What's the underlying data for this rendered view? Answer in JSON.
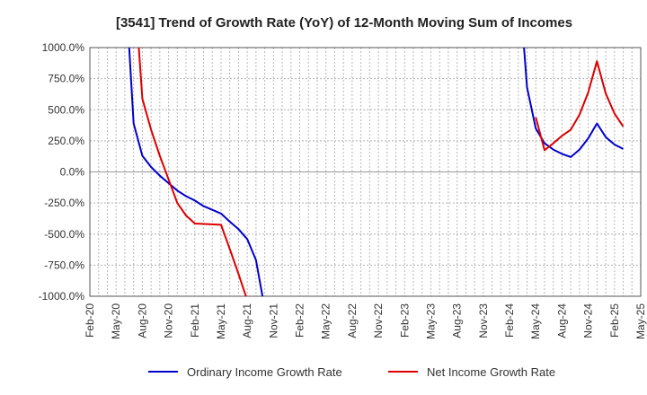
{
  "chart_data": {
    "type": "line",
    "title": "[3541]  Trend of Growth Rate (YoY) of 12-Month Moving Sum of Incomes",
    "xlabel": "",
    "ylabel": "",
    "ylim": [
      -1000,
      1000
    ],
    "y_ticks": [
      1000,
      750,
      500,
      250,
      0,
      -250,
      -500,
      -750,
      -1000
    ],
    "y_tick_labels": [
      "1000.0%",
      "750.0%",
      "500.0%",
      "250.0%",
      "0.0%",
      "-250.0%",
      "-500.0%",
      "-750.0%",
      "-1000.0%"
    ],
    "x_ticks": [
      "2020-02",
      "2020-05",
      "2020-08",
      "2020-11",
      "2021-02",
      "2021-05",
      "2021-08",
      "2021-11",
      "2022-02",
      "2022-05",
      "2022-08",
      "2022-11",
      "2023-02",
      "2023-05",
      "2023-08",
      "2023-11",
      "2024-02",
      "2024-05",
      "2024-08",
      "2024-11",
      "2025-02",
      "2025-05"
    ],
    "x_tick_labels": [
      "Feb-20",
      "May-20",
      "Aug-20",
      "Nov-20",
      "Feb-21",
      "May-21",
      "Aug-21",
      "Nov-21",
      "Feb-22",
      "May-22",
      "Aug-22",
      "Nov-22",
      "Feb-23",
      "May-23",
      "Aug-23",
      "Nov-23",
      "Feb-24",
      "May-24",
      "Aug-24",
      "Nov-24",
      "Feb-25",
      "May-25"
    ],
    "grid": true,
    "legend_position": "bottom",
    "series": [
      {
        "name": "Ordinary Income Growth Rate",
        "color": "#0000cc",
        "points": [
          {
            "x": "2020-06",
            "y": 1600
          },
          {
            "x": "2020-07",
            "y": 390
          },
          {
            "x": "2020-08",
            "y": 130
          },
          {
            "x": "2020-09",
            "y": 40
          },
          {
            "x": "2020-10",
            "y": -30
          },
          {
            "x": "2020-11",
            "y": -90
          },
          {
            "x": "2020-12",
            "y": -150
          },
          {
            "x": "2021-01",
            "y": -195
          },
          {
            "x": "2021-02",
            "y": -230
          },
          {
            "x": "2021-03",
            "y": -275
          },
          {
            "x": "2021-04",
            "y": -305
          },
          {
            "x": "2021-05",
            "y": -335
          },
          {
            "x": "2021-06",
            "y": -400
          },
          {
            "x": "2021-07",
            "y": -460
          },
          {
            "x": "2021-08",
            "y": -540
          },
          {
            "x": "2021-09",
            "y": -710
          },
          {
            "x": "2021-10",
            "y": -1100
          },
          {
            "x": null,
            "y": null
          },
          {
            "x": "2024-03",
            "y": 1600
          },
          {
            "x": "2024-04",
            "y": 680
          },
          {
            "x": "2024-05",
            "y": 350
          },
          {
            "x": "2024-06",
            "y": 230
          },
          {
            "x": "2024-07",
            "y": 180
          },
          {
            "x": "2024-08",
            "y": 145
          },
          {
            "x": "2024-09",
            "y": 120
          },
          {
            "x": "2024-10",
            "y": 180
          },
          {
            "x": "2024-11",
            "y": 270
          },
          {
            "x": "2024-12",
            "y": 390
          },
          {
            "x": "2025-01",
            "y": 280
          },
          {
            "x": "2025-02",
            "y": 220
          },
          {
            "x": "2025-03",
            "y": 185
          }
        ]
      },
      {
        "name": "Net Income Growth Rate",
        "color": "#dd0000",
        "points": [
          {
            "x": "2020-07",
            "y": 1600
          },
          {
            "x": "2020-08",
            "y": 590
          },
          {
            "x": "2020-09",
            "y": 340
          },
          {
            "x": "2020-10",
            "y": 130
          },
          {
            "x": "2020-11",
            "y": -60
          },
          {
            "x": "2020-12",
            "y": -250
          },
          {
            "x": "2021-01",
            "y": -350
          },
          {
            "x": "2021-02",
            "y": -415
          },
          {
            "x": "2021-05",
            "y": -425
          },
          {
            "x": "2021-06",
            "y": -620
          },
          {
            "x": "2021-07",
            "y": -820
          },
          {
            "x": "2021-08",
            "y": -1030
          },
          {
            "x": null,
            "y": null
          },
          {
            "x": "2024-05",
            "y": 440
          },
          {
            "x": "2024-06",
            "y": 175
          },
          {
            "x": "2024-07",
            "y": 230
          },
          {
            "x": "2024-08",
            "y": 290
          },
          {
            "x": "2024-09",
            "y": 340
          },
          {
            "x": "2024-10",
            "y": 460
          },
          {
            "x": "2024-11",
            "y": 640
          },
          {
            "x": "2024-12",
            "y": 890
          },
          {
            "x": "2025-01",
            "y": 630
          },
          {
            "x": "2025-02",
            "y": 470
          },
          {
            "x": "2025-03",
            "y": 365
          }
        ]
      }
    ]
  }
}
